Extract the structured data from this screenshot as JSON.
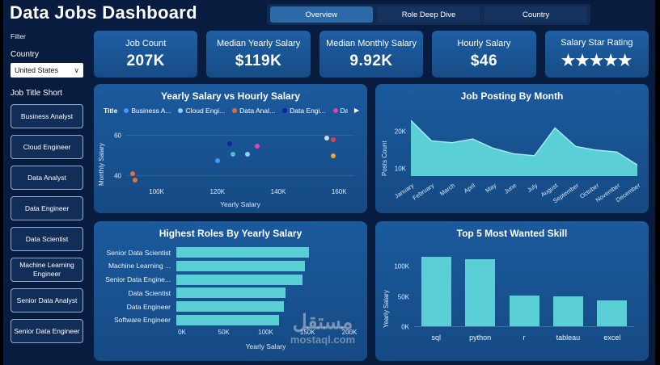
{
  "header": {
    "title": "Data Jobs Dashboard",
    "nav": [
      {
        "label": "Overview",
        "active": true
      },
      {
        "label": "Role Deep Dive",
        "active": false
      },
      {
        "label": "Country",
        "active": false
      }
    ]
  },
  "sidebar": {
    "filter_label": "Filter",
    "country_label": "Country",
    "country_value": "United States",
    "job_title_label": "Job Title Short",
    "job_titles": [
      "Business Analyst",
      "Cloud Engineer",
      "Data Analyst",
      "Data Engineer",
      "Data Scientist",
      "Machine Learning Engineer",
      "Senior Data Analyst",
      "Senior Data Engineer"
    ]
  },
  "kpis": [
    {
      "label": "Job Count",
      "value": "207K"
    },
    {
      "label": "Median Yearly Salary",
      "value": "$119K"
    },
    {
      "label": "Median Monthly Salary",
      "value": "9.92K"
    },
    {
      "label": "Hourly Salary",
      "value": "$46"
    },
    {
      "label": "Salary Star Rating",
      "value": "★★★★★"
    }
  ],
  "colors": {
    "accent": "#5BCFD6",
    "card_blue": "#1B5A9D",
    "background": "#081C3F",
    "active_tab": "#2C69A7"
  },
  "watermark": {
    "arabic": "مستقل",
    "domain": "mostaql.com"
  },
  "chart_data": [
    {
      "type": "scatter",
      "title": "Yearly Salary vs Hourly Salary",
      "xlabel": "Yearly Salary",
      "ylabel": "Monthly Salary",
      "legend_title": "Title",
      "xlim": [
        90,
        165
      ],
      "ylim": [
        35,
        65
      ],
      "x_ticks": [
        "100K",
        "120K",
        "140K",
        "160K"
      ],
      "x_tick_values": [
        100,
        120,
        140,
        160
      ],
      "y_ticks": [
        "40",
        "60"
      ],
      "y_tick_values": [
        40,
        60
      ],
      "series": [
        {
          "name": "Business Analyst",
          "label": "Business A...",
          "color": "#3A9BFF",
          "points": [
            [
              120,
              47.5
            ]
          ]
        },
        {
          "name": "Cloud Engineer",
          "label": "Cloud Engi...",
          "color": "#8AD4EB",
          "points": [
            [
              130,
              51
            ]
          ]
        },
        {
          "name": "Data Analyst",
          "label": "Data Anal...",
          "color": "#E66C37",
          "points": [
            [
              92,
              41
            ],
            [
              93,
              38
            ]
          ]
        },
        {
          "name": "Data Engineer",
          "label": "Data Engi...",
          "color": "#12239E",
          "points": [
            [
              124,
              56
            ]
          ]
        },
        {
          "name": "Data Scientist",
          "label": "Data Scie...",
          "color": "#E044A7",
          "points": [
            [
              133,
              55
            ]
          ]
        },
        {
          "name": "Machine Learning Engineer",
          "label": "",
          "color": "#D64550",
          "points": [
            [
              158,
              58
            ]
          ]
        },
        {
          "name": "Senior Data Analyst",
          "label": "",
          "color": "#4BC0C0",
          "points": [
            [
              125,
              51
            ]
          ]
        },
        {
          "name": "Senior Data Engineer",
          "label": "",
          "color": "#F5A623",
          "points": [
            [
              158,
              50
            ]
          ]
        },
        {
          "name": "Senior Data Scientist",
          "label": "",
          "color": "#D9D9D9",
          "points": [
            [
              156,
              59
            ]
          ]
        }
      ]
    },
    {
      "type": "area",
      "title": "Job Posting By Month",
      "ylabel": "Posts Count",
      "categories": [
        "January",
        "February",
        "March",
        "April",
        "May",
        "June",
        "July",
        "August",
        "September",
        "October",
        "November",
        "December"
      ],
      "values": [
        23,
        17.5,
        17,
        18,
        15.5,
        14,
        13.5,
        21,
        16,
        15,
        14.5,
        11
      ],
      "y_ticks": [
        "10K",
        "20K"
      ],
      "y_tick_values": [
        10,
        20
      ],
      "ylim": [
        8,
        25
      ]
    },
    {
      "type": "bar-horizontal",
      "title": "Highest Roles By Yearly Salary",
      "xlabel": "Yearly Salary",
      "categories": [
        "Senior Data Scientist",
        "Machine Learning ...",
        "Senior Data Engine...",
        "Data Scientist",
        "Data Engineer",
        "Software Engineer"
      ],
      "values": [
        153,
        149,
        146,
        126,
        124,
        119
      ],
      "x_ticks": [
        "0K",
        "50K",
        "100K",
        "150K",
        "200K"
      ],
      "xlim": [
        0,
        200
      ]
    },
    {
      "type": "bar-vertical",
      "title": "Top 5 Most Wanted Skill",
      "ylabel": "Yearly Salary",
      "categories": [
        "sql",
        "python",
        "r",
        "tableau",
        "excel"
      ],
      "values": [
        116,
        112,
        52,
        50,
        43
      ],
      "y_ticks": [
        "0K",
        "50K",
        "100K"
      ],
      "y_tick_values": [
        0,
        50,
        100
      ],
      "ylim": [
        0,
        130
      ]
    }
  ]
}
